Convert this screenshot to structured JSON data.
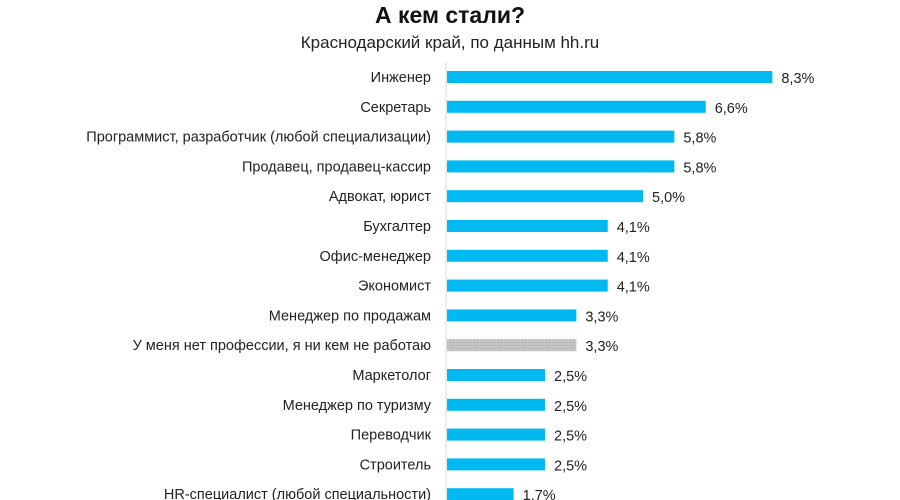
{
  "chart_data": {
    "type": "bar",
    "orientation": "horizontal",
    "title": "А кем стали?",
    "subtitle": "Краснодарский край,  по данным hh.ru",
    "categories": [
      "Инженер",
      "Секретарь",
      "Программист, разработчик (любой специализации)",
      "Продавец, продавец-кассир",
      "Адвокат, юрист",
      "Бухгалтер",
      "Офис-менеджер",
      "Экономист",
      "Менеджер по продажам",
      "У меня нет профессии, я ни кем не работаю",
      "Маркетолог",
      "Менеджер по туризму",
      "Переводчик",
      "Строитель",
      "HR-специалист (любой специальности)"
    ],
    "values": [
      8.3,
      6.6,
      5.8,
      5.8,
      5.0,
      4.1,
      4.1,
      4.1,
      3.3,
      3.3,
      2.5,
      2.5,
      2.5,
      2.5,
      1.7
    ],
    "value_labels": [
      "8,3%",
      "6,6%",
      "5,8%",
      "5,8%",
      "5,0%",
      "4,1%",
      "4,1%",
      "4,1%",
      "3,3%",
      "3,3%",
      "2,5%",
      "2,5%",
      "2,5%",
      "2,5%",
      "1,7%"
    ],
    "highlighted_gray": [
      "У меня нет профессии, я ни кем не работаю"
    ],
    "colors": {
      "bar": "#00B9F1",
      "gray_bar": "#C4C4C4",
      "axis": "#D9D9D9"
    },
    "grid": false,
    "legend": "none"
  }
}
